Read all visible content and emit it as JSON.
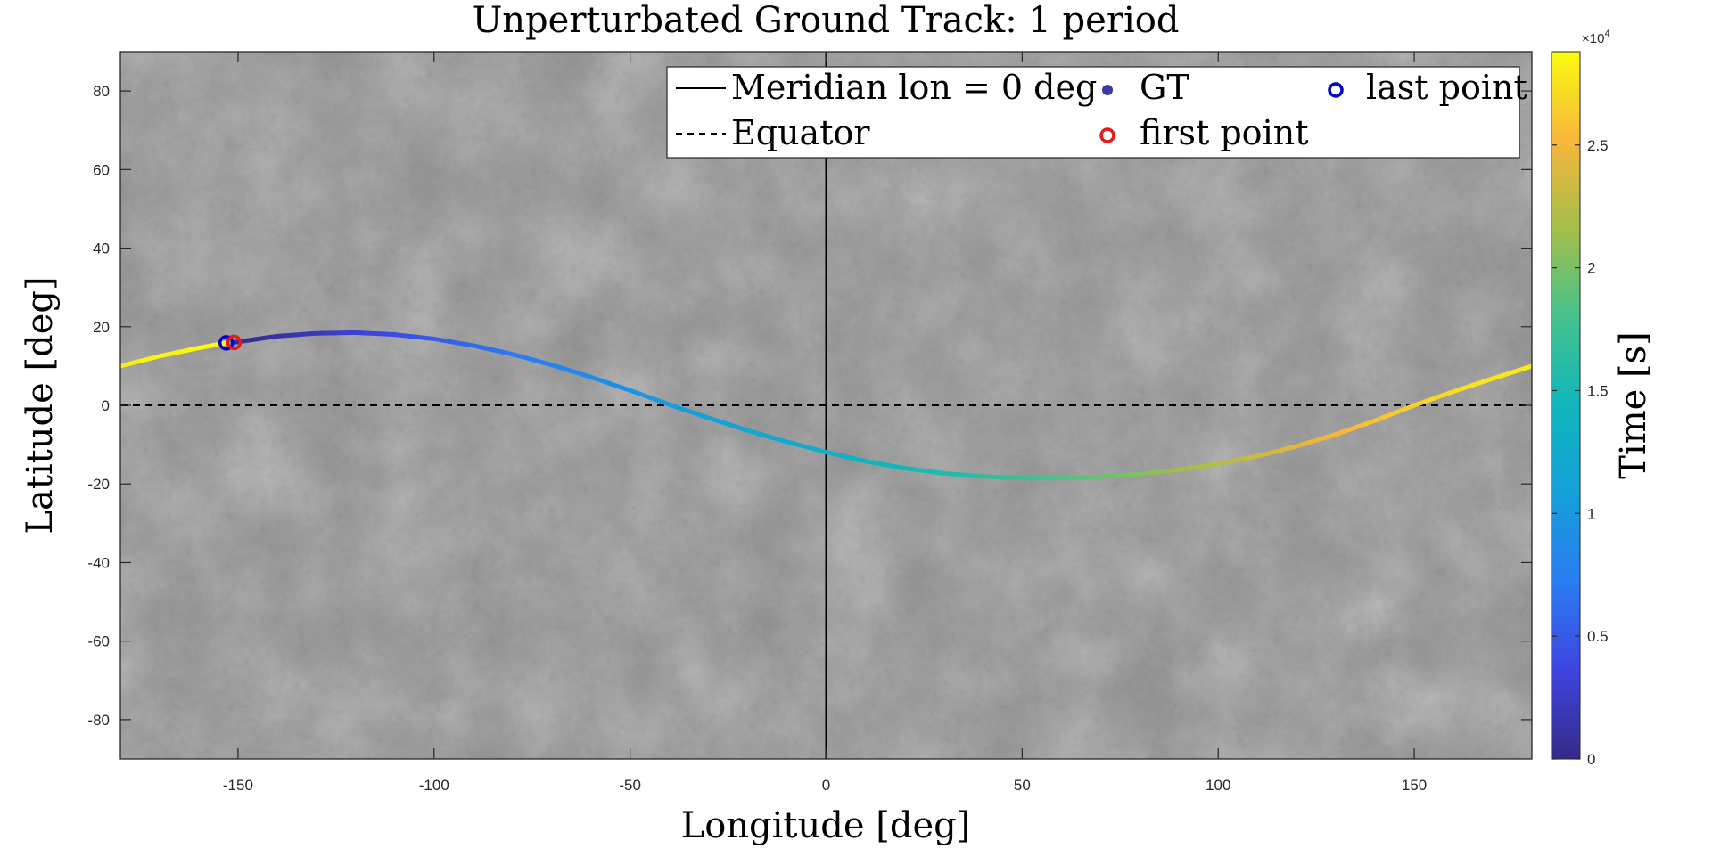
{
  "chart_data": {
    "type": "line",
    "title": "Unperturbated Ground Track: 1 period",
    "xlabel": "Longitude [deg]",
    "ylabel": "Latitude [deg]",
    "xlim": [
      -180,
      180
    ],
    "ylim": [
      -90,
      90
    ],
    "xticks": [
      -150,
      -100,
      -50,
      0,
      50,
      100,
      150
    ],
    "yticks": [
      -80,
      -60,
      -40,
      -20,
      0,
      20,
      40,
      60,
      80
    ],
    "background": "grey cratered planetary surface map",
    "grid": false,
    "legend": {
      "position": "top-right",
      "entries": [
        {
          "label": "Meridian lon = 0 deg",
          "style": "solid-line"
        },
        {
          "label": "Equator",
          "style": "dashed-line"
        },
        {
          "label": "GT",
          "style": "filled-dot"
        },
        {
          "label": "first point",
          "style": "red-circle"
        },
        {
          "label": "last point",
          "style": "blue-circle"
        }
      ]
    },
    "colorbar": {
      "label": "Time [s]",
      "range": [
        0,
        28800
      ],
      "exponent_label": "×10",
      "exponent_power": "4",
      "ticks": [
        {
          "value": 0,
          "label": "0"
        },
        {
          "value": 5000,
          "label": "0.5"
        },
        {
          "value": 10000,
          "label": "1"
        },
        {
          "value": 15000,
          "label": "1.5"
        },
        {
          "value": 20000,
          "label": "2"
        },
        {
          "value": 25000,
          "label": "2.5"
        }
      ],
      "colormap": "parula"
    },
    "reference_lines": [
      {
        "name": "Meridian lon = 0 deg",
        "axis": "x",
        "value": 0,
        "style": "solid",
        "color": "#000000"
      },
      {
        "name": "Equator",
        "axis": "y",
        "value": 0,
        "style": "dashed",
        "color": "#000000"
      }
    ],
    "series": [
      {
        "name": "GT",
        "time_range": [
          0,
          28800
        ],
        "points": [
          {
            "lon": -151.0,
            "lat": 16.0,
            "t": 0
          },
          {
            "lon": -140.0,
            "lat": 17.6,
            "t": 1100
          },
          {
            "lon": -130.0,
            "lat": 18.3,
            "t": 2100
          },
          {
            "lon": -120.0,
            "lat": 18.5,
            "t": 3100
          },
          {
            "lon": -110.0,
            "lat": 18.0,
            "t": 4100
          },
          {
            "lon": -100.0,
            "lat": 16.9,
            "t": 5100
          },
          {
            "lon": -90.0,
            "lat": 15.2,
            "t": 6100
          },
          {
            "lon": -80.0,
            "lat": 13.0,
            "t": 7000
          },
          {
            "lon": -70.0,
            "lat": 10.3,
            "t": 7900
          },
          {
            "lon": -60.0,
            "lat": 7.2,
            "t": 8700
          },
          {
            "lon": -50.0,
            "lat": 3.8,
            "t": 9500
          },
          {
            "lon": -40.0,
            "lat": 0.2,
            "t": 10300
          },
          {
            "lon": -30.0,
            "lat": -3.2,
            "t": 11000
          },
          {
            "lon": -20.0,
            "lat": -6.4,
            "t": 11700
          },
          {
            "lon": -10.0,
            "lat": -9.3,
            "t": 12400
          },
          {
            "lon": 0.0,
            "lat": -11.9,
            "t": 13100
          },
          {
            "lon": 10.0,
            "lat": -14.2,
            "t": 13900
          },
          {
            "lon": 20.0,
            "lat": -16.0,
            "t": 14700
          },
          {
            "lon": 30.0,
            "lat": -17.3,
            "t": 15500
          },
          {
            "lon": 40.0,
            "lat": -18.1,
            "t": 16400
          },
          {
            "lon": 50.0,
            "lat": -18.5,
            "t": 17300
          },
          {
            "lon": 60.0,
            "lat": -18.5,
            "t": 18300
          },
          {
            "lon": 70.0,
            "lat": -18.2,
            "t": 19300
          },
          {
            "lon": 80.0,
            "lat": -17.5,
            "t": 20300
          },
          {
            "lon": 90.0,
            "lat": -16.4,
            "t": 21300
          },
          {
            "lon": 100.0,
            "lat": -14.9,
            "t": 22300
          },
          {
            "lon": 110.0,
            "lat": -12.9,
            "t": 23200
          },
          {
            "lon": 120.0,
            "lat": -10.4,
            "t": 24100
          },
          {
            "lon": 130.0,
            "lat": -7.4,
            "t": 25000
          },
          {
            "lon": 140.0,
            "lat": -3.9,
            "t": 25800
          },
          {
            "lon": 150.0,
            "lat": 0.0,
            "t": 26500
          },
          {
            "lon": 160.0,
            "lat": 3.5,
            "t": 27100
          },
          {
            "lon": 170.0,
            "lat": 6.8,
            "t": 27600
          },
          {
            "lon": 180.0,
            "lat": 10.0,
            "t": 28000
          },
          {
            "lon": -180.0,
            "lat": 10.0,
            "t": 28000
          },
          {
            "lon": -170.0,
            "lat": 12.5,
            "t": 28350
          },
          {
            "lon": -160.0,
            "lat": 14.6,
            "t": 28600
          },
          {
            "lon": -153.0,
            "lat": 15.9,
            "t": 28800
          }
        ]
      }
    ],
    "markers": [
      {
        "name": "first point",
        "lon": -151.0,
        "lat": 16.0,
        "color": "#e41a1c"
      },
      {
        "name": "last point",
        "lon": -153.0,
        "lat": 15.9,
        "color": "#0000cc"
      }
    ]
  }
}
